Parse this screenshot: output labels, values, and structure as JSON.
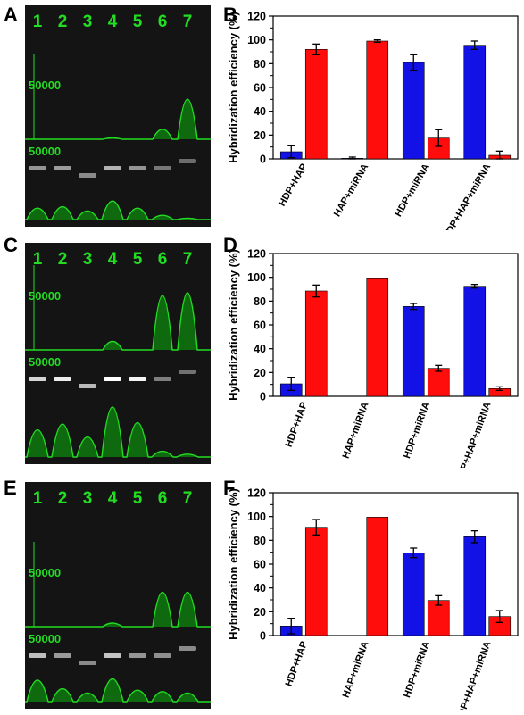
{
  "panels": [
    {
      "gel_letter": "A",
      "chart_letter": "B",
      "lanes": [
        "1",
        "2",
        "3",
        "4",
        "5",
        "6",
        "7"
      ],
      "scale_top": "50000",
      "scale_bottom": "50000"
    },
    {
      "gel_letter": "C",
      "chart_letter": "D",
      "lanes": [
        "1",
        "2",
        "3",
        "4",
        "5",
        "6",
        "7"
      ],
      "scale_top": "50000",
      "scale_bottom": "50000"
    },
    {
      "gel_letter": "E",
      "chart_letter": "F",
      "lanes": [
        "1",
        "2",
        "3",
        "4",
        "5",
        "6",
        "7"
      ],
      "scale_top": "50000",
      "scale_bottom": "50000"
    }
  ],
  "colors": {
    "blue": "#1212e6",
    "red": "#ff0d0d",
    "green": "#22dd22"
  },
  "chart_data": [
    {
      "type": "bar",
      "categories": [
        "HDP+HAP",
        "HAP+miRNA",
        "HDP+miRNA",
        "HDP+HAP+miRNA"
      ],
      "ylabel": "Hybridization efficiency (%)",
      "ylim": [
        0,
        120
      ],
      "yticks": [
        0,
        20,
        40,
        60,
        80,
        100,
        120
      ],
      "series": [
        {
          "color": "blue",
          "values": [
            6,
            0.5,
            81,
            95.5
          ],
          "errors": [
            5,
            1,
            6.5,
            3.5
          ]
        },
        {
          "color": "red",
          "values": [
            92,
            99,
            17.5,
            3
          ],
          "errors": [
            4.5,
            1,
            7,
            3.5
          ]
        }
      ]
    },
    {
      "type": "bar",
      "categories": [
        "HDP+HAP",
        "HAP+miRNA",
        "HDP+miRNA",
        "HDP+HAP+miRNA"
      ],
      "ylabel": "Hybridization efficiency (%)",
      "ylim": [
        0,
        120
      ],
      "yticks": [
        0,
        20,
        40,
        60,
        80,
        100,
        120
      ],
      "series": [
        {
          "color": "blue",
          "values": [
            10.5,
            0,
            75.5,
            92.5
          ],
          "errors": [
            5.5,
            0,
            2.5,
            1.5
          ]
        },
        {
          "color": "red",
          "values": [
            88.5,
            99.5,
            23.5,
            6.5
          ],
          "errors": [
            5,
            0,
            2.5,
            1.5
          ]
        }
      ]
    },
    {
      "type": "bar",
      "categories": [
        "HDP+HAP",
        "HAP+miRNA",
        "HDP+miRNA",
        "HDP+HAP+miRNA"
      ],
      "ylabel": "Hybridization efficiency (%)",
      "ylim": [
        0,
        120
      ],
      "yticks": [
        0,
        20,
        40,
        60,
        80,
        100,
        120
      ],
      "series": [
        {
          "color": "blue",
          "values": [
            8,
            0,
            69.5,
            83
          ],
          "errors": [
            6.5,
            0,
            4,
            5
          ]
        },
        {
          "color": "red",
          "values": [
            91,
            99.5,
            29.5,
            16
          ],
          "errors": [
            6.5,
            0,
            4,
            5
          ]
        }
      ]
    }
  ]
}
